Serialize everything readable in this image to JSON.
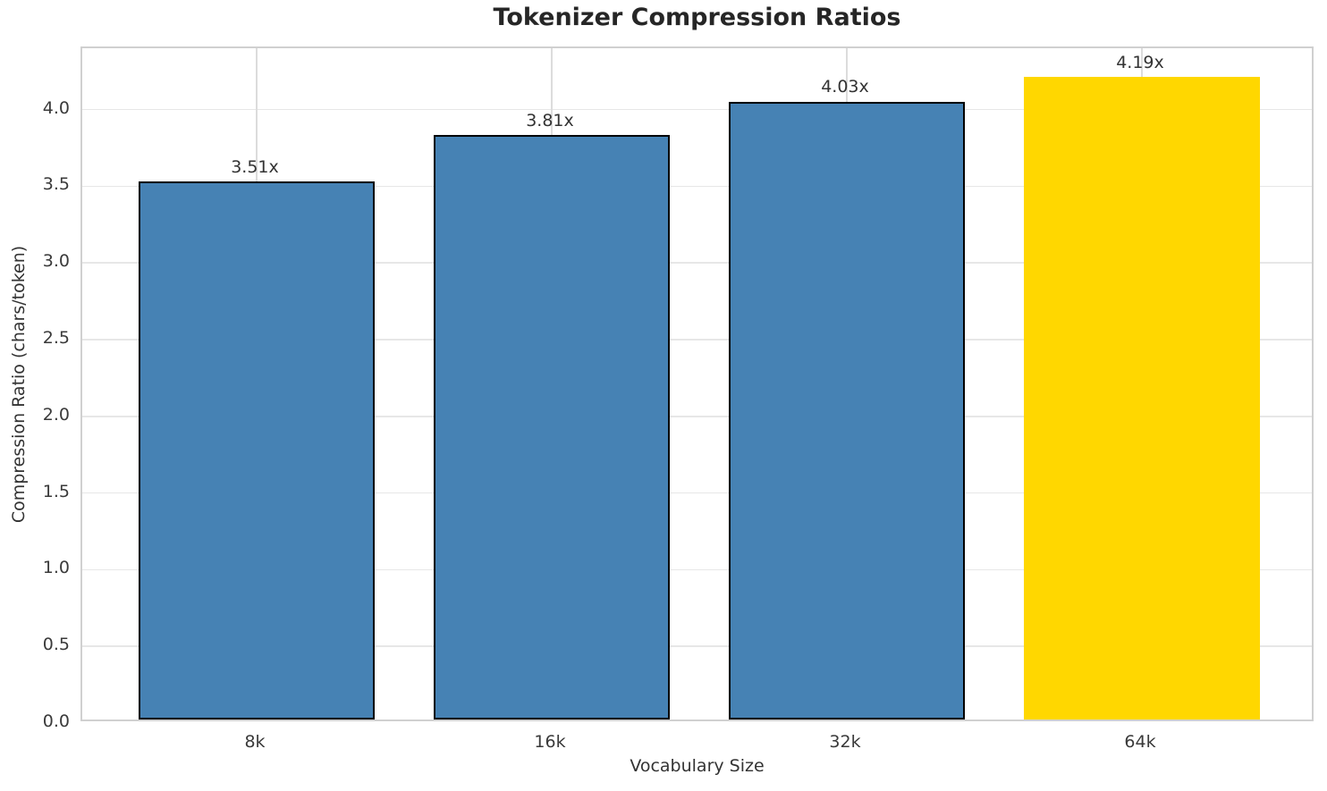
{
  "chart_data": {
    "type": "bar",
    "title": "Tokenizer Compression Ratios",
    "xlabel": "Vocabulary Size",
    "ylabel": "Compression Ratio (chars/token)",
    "categories": [
      "8k",
      "16k",
      "32k",
      "64k"
    ],
    "values": [
      3.51,
      3.81,
      4.03,
      4.19
    ],
    "bar_labels": [
      "3.51x",
      "3.81x",
      "4.03x",
      "4.19x"
    ],
    "bar_colors": [
      "#4682B4",
      "#4682B4",
      "#4682B4",
      "#FFD700"
    ],
    "bar_edge_colors": [
      "#000000",
      "#000000",
      "#000000",
      "#FFD700"
    ],
    "highlight_index": 3,
    "ylim": [
      0,
      4.4
    ],
    "yticks": [
      0.0,
      0.5,
      1.0,
      1.5,
      2.0,
      2.5,
      3.0,
      3.5,
      4.0
    ],
    "ytick_labels": [
      "0.0",
      "0.5",
      "1.0",
      "1.5",
      "2.0",
      "2.5",
      "3.0",
      "3.5",
      "4.0"
    ],
    "grid": true,
    "legend": "none",
    "accent_color": "#4682B4",
    "highlight_color": "#FFD700"
  }
}
